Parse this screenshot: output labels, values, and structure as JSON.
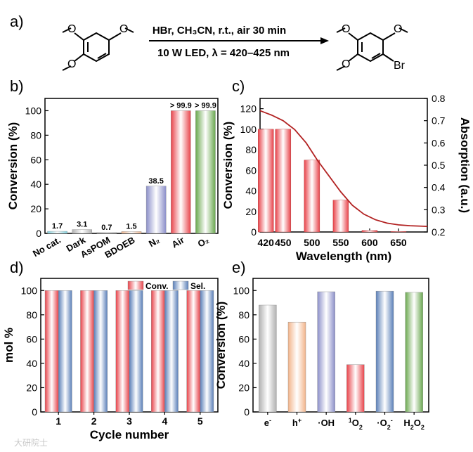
{
  "panel_labels": {
    "a": "a)",
    "b": "b)",
    "c": "c)",
    "d": "d)",
    "e": "e)"
  },
  "reaction": {
    "conditions_line1": "HBr, CH₃CN, r.t., air 30 min",
    "conditions_line2": "10 W LED, λ = 420–425 nm",
    "reactant_substituents": {
      "top_left": "O",
      "top_right": "O",
      "bottom_left": "O"
    },
    "product_substituents": {
      "top_left": "O",
      "top_right": "O",
      "bottom_left": "O",
      "bottom_right": "Br"
    }
  },
  "colors": {
    "red": "#e8434a",
    "blue": "#5a7fb8",
    "green": "#6aa84f",
    "purple": "#8b8fc9",
    "grey": "#b0b0b0",
    "orange": "#f2b48a",
    "cyan": "#7fd3e0",
    "line": "#b22222"
  },
  "watermark": "大研院士",
  "chart_data": [
    {
      "id": "b",
      "type": "bar",
      "ylabel": "Conversion (%)",
      "ylim": [
        0,
        110
      ],
      "yticks": [
        0,
        20,
        40,
        60,
        80,
        100
      ],
      "categories": [
        "No cat.",
        "Dark",
        "AsPOM",
        "BDOEB",
        "N₂",
        "Air",
        "O₂"
      ],
      "values": [
        1.7,
        3.1,
        0.7,
        1.5,
        38.5,
        100,
        100
      ],
      "data_labels": [
        "1.7",
        "3.1",
        "0.7",
        "1.5",
        "38.5",
        "> 99.9",
        "> 99.9"
      ],
      "bar_colors": [
        "cyan",
        "grey",
        "grey",
        "orange",
        "purple",
        "red",
        "green"
      ]
    },
    {
      "id": "c",
      "type": "bar+line",
      "xlabel": "Wavelength (nm)",
      "ylabel": "Conversion (%)",
      "y2label": "Absorption (a.u.)",
      "ylim": [
        0,
        130
      ],
      "yticks": [
        0,
        20,
        40,
        60,
        80,
        100,
        120
      ],
      "y2lim": [
        0.2,
        0.8
      ],
      "y2ticks": [
        "0.2",
        "0.3",
        "0.4",
        "0.5",
        "0.6",
        "0.7",
        "0.8"
      ],
      "xlim": [
        410,
        700
      ],
      "xticks": [
        420,
        450,
        500,
        550,
        600,
        650
      ],
      "bars": {
        "x": [
          420,
          450,
          500,
          550,
          600,
          650
        ],
        "values": [
          100,
          100,
          70,
          31,
          1.5,
          0.5
        ]
      },
      "line": {
        "x": [
          410,
          430,
          450,
          470,
          490,
          510,
          530,
          550,
          570,
          590,
          610,
          630,
          650,
          670,
          690,
          700
        ],
        "y": [
          0.745,
          0.725,
          0.7,
          0.66,
          0.6,
          0.52,
          0.45,
          0.38,
          0.32,
          0.28,
          0.255,
          0.24,
          0.232,
          0.228,
          0.226,
          0.225
        ]
      }
    },
    {
      "id": "d",
      "type": "bar",
      "xlabel": "Cycle number",
      "ylabel": "mol %",
      "ylim": [
        0,
        110
      ],
      "yticks": [
        0,
        20,
        40,
        60,
        80,
        100
      ],
      "categories": [
        "1",
        "2",
        "3",
        "4",
        "5"
      ],
      "series": [
        {
          "name": "Conv.",
          "color": "red",
          "values": [
            100,
            100,
            100,
            100,
            100
          ]
        },
        {
          "name": "Sel.",
          "color": "blue",
          "values": [
            100,
            100,
            100,
            100,
            100
          ]
        }
      ],
      "legend": "top-right"
    },
    {
      "id": "e",
      "type": "bar",
      "ylabel": "Conversion (%)",
      "ylim": [
        0,
        110
      ],
      "yticks": [
        0,
        20,
        40,
        60,
        80,
        100
      ],
      "categories": [
        {
          "base": "e",
          "sup": "-",
          "sub": "",
          "post": ""
        },
        {
          "base": "h",
          "sup": "+",
          "sub": "",
          "post": ""
        },
        {
          "base": "·OH",
          "sup": "",
          "sub": "",
          "post": ""
        },
        {
          "pre": "1",
          "base": "O",
          "sup": "",
          "sub": "2",
          "post": ""
        },
        {
          "base": "·O",
          "sub": "2",
          "sup": "-",
          "post": ""
        },
        {
          "base": "H",
          "sub": "2",
          "post": "O",
          "sub2": "2"
        }
      ],
      "values": [
        88,
        74,
        99,
        39,
        99.5,
        98.5
      ],
      "bar_colors": [
        "grey",
        "orange",
        "purple",
        "red",
        "blue",
        "green"
      ]
    }
  ]
}
